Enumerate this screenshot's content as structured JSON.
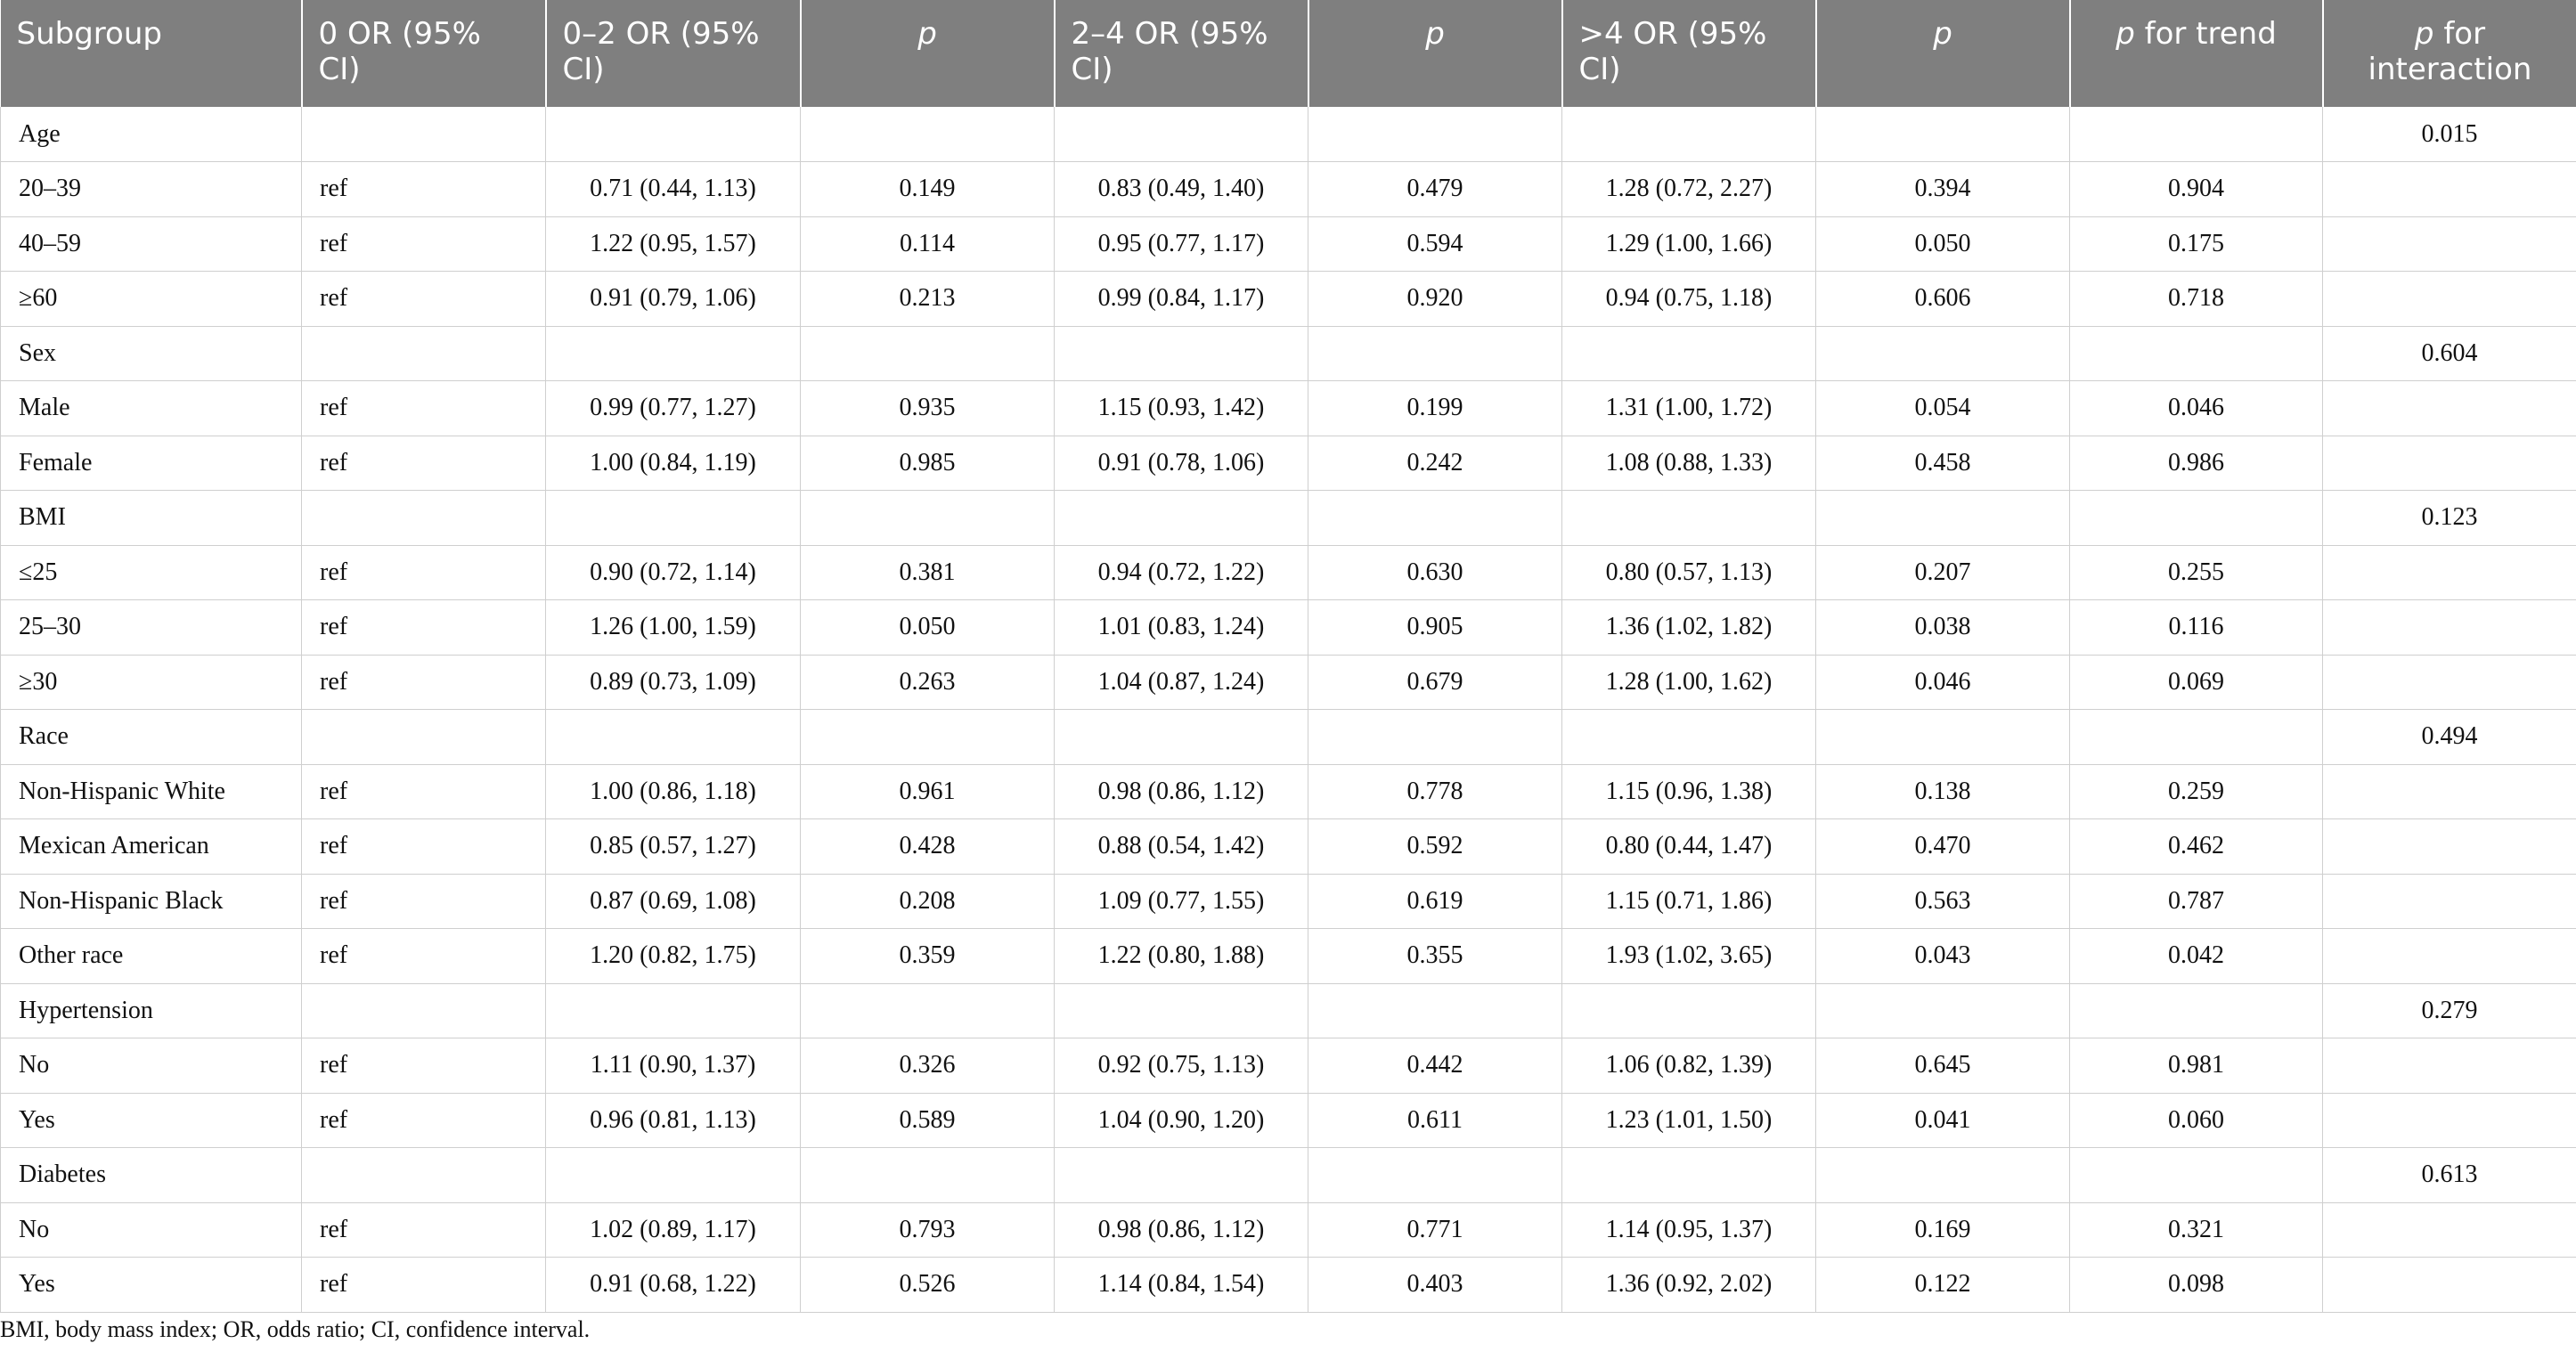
{
  "table": {
    "headers": [
      {
        "text": "Subgroup",
        "italic": false
      },
      {
        "text": "0 OR (95% CI)",
        "italic": false
      },
      {
        "text": "0–2 OR (95% CI)",
        "italic": false
      },
      {
        "text": "p",
        "italic": true
      },
      {
        "text": "2–4 OR (95% CI)",
        "italic": false
      },
      {
        "text": "p",
        "italic": true
      },
      {
        "text": ">4 OR (95% CI)",
        "italic": false
      },
      {
        "text": "p",
        "italic": true
      },
      {
        "text": "p for trend",
        "italic": "partial"
      },
      {
        "text": "p for interaction",
        "italic": "partial"
      }
    ],
    "rows": [
      [
        "Age",
        "",
        "",
        "",
        "",
        "",
        "",
        "",
        "",
        "0.015"
      ],
      [
        "20–39",
        "ref",
        "0.71 (0.44, 1.13)",
        "0.149",
        "0.83 (0.49, 1.40)",
        "0.479",
        "1.28 (0.72, 2.27)",
        "0.394",
        "0.904",
        ""
      ],
      [
        "40–59",
        "ref",
        "1.22 (0.95, 1.57)",
        "0.114",
        "0.95 (0.77, 1.17)",
        "0.594",
        "1.29 (1.00, 1.66)",
        "0.050",
        "0.175",
        ""
      ],
      [
        "≥60",
        "ref",
        "0.91 (0.79, 1.06)",
        "0.213",
        "0.99 (0.84, 1.17)",
        "0.920",
        "0.94 (0.75, 1.18)",
        "0.606",
        "0.718",
        ""
      ],
      [
        "Sex",
        "",
        "",
        "",
        "",
        "",
        "",
        "",
        "",
        "0.604"
      ],
      [
        "Male",
        "ref",
        "0.99 (0.77, 1.27)",
        "0.935",
        "1.15 (0.93, 1.42)",
        "0.199",
        "1.31 (1.00, 1.72)",
        "0.054",
        "0.046",
        ""
      ],
      [
        "Female",
        "ref",
        "1.00 (0.84, 1.19)",
        "0.985",
        "0.91 (0.78, 1.06)",
        "0.242",
        "1.08 (0.88, 1.33)",
        "0.458",
        "0.986",
        ""
      ],
      [
        "BMI",
        "",
        "",
        "",
        "",
        "",
        "",
        "",
        "",
        "0.123"
      ],
      [
        "≤25",
        "ref",
        "0.90 (0.72, 1.14)",
        "0.381",
        "0.94 (0.72, 1.22)",
        "0.630",
        "0.80 (0.57, 1.13)",
        "0.207",
        "0.255",
        ""
      ],
      [
        "25–30",
        "ref",
        "1.26 (1.00, 1.59)",
        "0.050",
        "1.01 (0.83, 1.24)",
        "0.905",
        "1.36 (1.02, 1.82)",
        "0.038",
        "0.116",
        ""
      ],
      [
        "≥30",
        "ref",
        "0.89 (0.73, 1.09)",
        "0.263",
        "1.04 (0.87, 1.24)",
        "0.679",
        "1.28 (1.00, 1.62)",
        "0.046",
        "0.069",
        ""
      ],
      [
        "Race",
        "",
        "",
        "",
        "",
        "",
        "",
        "",
        "",
        "0.494"
      ],
      [
        "Non-Hispanic White",
        "ref",
        "1.00 (0.86, 1.18)",
        "0.961",
        "0.98 (0.86, 1.12)",
        "0.778",
        "1.15 (0.96, 1.38)",
        "0.138",
        "0.259",
        ""
      ],
      [
        "Mexican American",
        "ref",
        "0.85 (0.57, 1.27)",
        "0.428",
        "0.88 (0.54, 1.42)",
        "0.592",
        "0.80 (0.44, 1.47)",
        "0.470",
        "0.462",
        ""
      ],
      [
        "Non-Hispanic Black",
        "ref",
        "0.87 (0.69, 1.08)",
        "0.208",
        "1.09 (0.77, 1.55)",
        "0.619",
        "1.15 (0.71, 1.86)",
        "0.563",
        "0.787",
        ""
      ],
      [
        "Other race",
        "ref",
        "1.20 (0.82, 1.75)",
        "0.359",
        "1.22 (0.80, 1.88)",
        "0.355",
        "1.93 (1.02, 3.65)",
        "0.043",
        "0.042",
        ""
      ],
      [
        "Hypertension",
        "",
        "",
        "",
        "",
        "",
        "",
        "",
        "",
        "0.279"
      ],
      [
        "No",
        "ref",
        "1.11 (0.90, 1.37)",
        "0.326",
        "0.92 (0.75, 1.13)",
        "0.442",
        "1.06 (0.82, 1.39)",
        "0.645",
        "0.981",
        ""
      ],
      [
        "Yes",
        "ref",
        "0.96 (0.81, 1.13)",
        "0.589",
        "1.04 (0.90, 1.20)",
        "0.611",
        "1.23 (1.01, 1.50)",
        "0.041",
        "0.060",
        ""
      ],
      [
        "Diabetes",
        "",
        "",
        "",
        "",
        "",
        "",
        "",
        "",
        "0.613"
      ],
      [
        "No",
        "ref",
        "1.02 (0.89, 1.17)",
        "0.793",
        "0.98 (0.86, 1.12)",
        "0.771",
        "1.14 (0.95, 1.37)",
        "0.169",
        "0.321",
        ""
      ],
      [
        "Yes",
        "ref",
        "0.91 (0.68, 1.22)",
        "0.526",
        "1.14 (0.84, 1.54)",
        "0.403",
        "1.36 (0.92, 2.02)",
        "0.122",
        "0.098",
        ""
      ]
    ]
  },
  "footnote": "BMI, body mass index; OR, odds ratio; CI, confidence interval."
}
